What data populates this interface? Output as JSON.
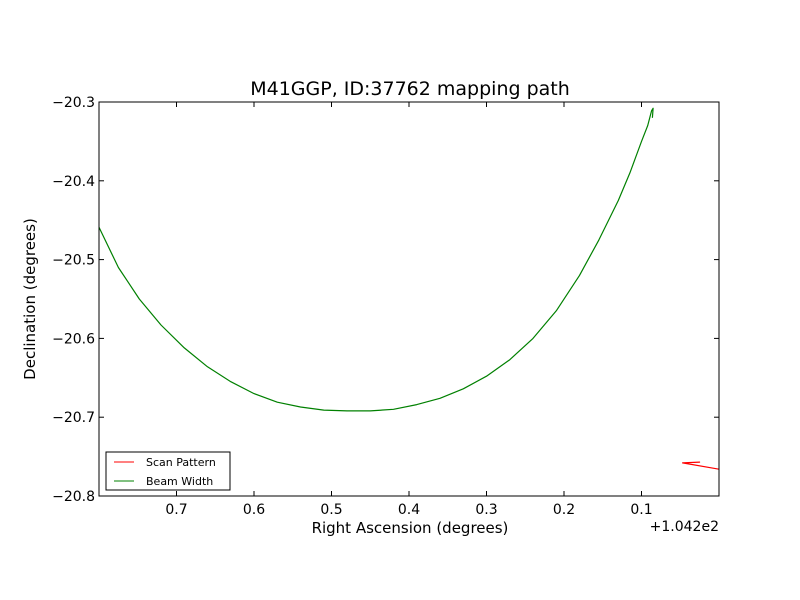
{
  "chart_data": {
    "type": "line",
    "title": "M41GGP, ID:37762 mapping path",
    "xlabel": "Right Ascension (degrees)",
    "ylabel": "Declination (degrees)",
    "x_offset_label": "+1.042e2",
    "x_inverted": true,
    "xlim": [
      0.8,
      0.0
    ],
    "ylim": [
      -20.8,
      -20.3
    ],
    "x_ticks": [
      0.7,
      0.6,
      0.5,
      0.4,
      0.3,
      0.2,
      0.1
    ],
    "x_tick_labels": [
      "0.7",
      "0.6",
      "0.5",
      "0.4",
      "0.3",
      "0.2",
      "0.1"
    ],
    "y_ticks": [
      -20.3,
      -20.4,
      -20.5,
      -20.6,
      -20.7,
      -20.8
    ],
    "y_tick_labels": [
      "−20.3",
      "−20.4",
      "−20.5",
      "−20.6",
      "−20.7",
      "−20.8"
    ],
    "grid": false,
    "legend_position": "lower-left",
    "series": [
      {
        "name": "Scan Pattern",
        "color": "#ff0000",
        "x": [
          0.0,
          0.047,
          0.025,
          0.047
        ],
        "y": [
          -20.766,
          -20.758,
          -20.757,
          -20.758
        ]
      },
      {
        "name": "Beam Width",
        "color": "#008000",
        "x": [
          0.8,
          0.775,
          0.748,
          0.72,
          0.69,
          0.66,
          0.63,
          0.6,
          0.57,
          0.54,
          0.51,
          0.48,
          0.45,
          0.42,
          0.39,
          0.36,
          0.33,
          0.3,
          0.27,
          0.24,
          0.21,
          0.18,
          0.155,
          0.13,
          0.115,
          0.1,
          0.092,
          0.087,
          0.085,
          0.086
        ],
        "y": [
          -20.459,
          -20.51,
          -20.55,
          -20.583,
          -20.612,
          -20.636,
          -20.655,
          -20.67,
          -20.681,
          -20.687,
          -20.691,
          -20.692,
          -20.692,
          -20.69,
          -20.684,
          -20.676,
          -20.664,
          -20.648,
          -20.627,
          -20.6,
          -20.565,
          -20.52,
          -20.475,
          -20.425,
          -20.39,
          -20.35,
          -20.33,
          -20.311,
          -20.308,
          -20.32
        ]
      }
    ]
  }
}
